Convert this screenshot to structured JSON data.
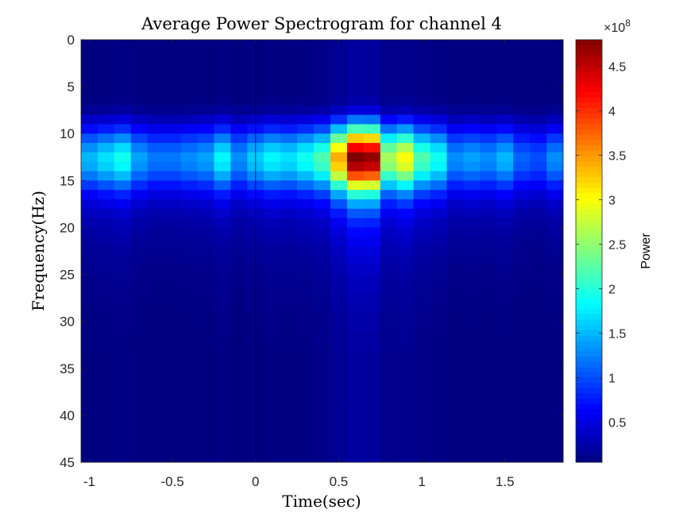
{
  "chart_data": {
    "type": "heatmap",
    "title": "Average Power Spectrogram for channel 4",
    "xlabel": "Time(sec)",
    "ylabel": "Frequency(Hz)",
    "colorbar_label": "Power",
    "colorbar_exponent": "×10",
    "colorbar_exponent_power": "8",
    "colormap": "jet",
    "grid": false,
    "xlim": [
      -1.05,
      1.85
    ],
    "ylim": [
      0,
      45
    ],
    "y_reversed": true,
    "clim": [
      0.05,
      4.8
    ],
    "x_ticks": [
      -1,
      -0.5,
      0,
      0.5,
      1,
      1.5
    ],
    "x_tick_labels": [
      "-1",
      "-0.5",
      "0",
      "0.5",
      "1",
      "1.5"
    ],
    "y_ticks": [
      0,
      5,
      10,
      15,
      20,
      25,
      30,
      35,
      40,
      45
    ],
    "y_tick_labels": [
      "0",
      "5",
      "10",
      "15",
      "20",
      "25",
      "30",
      "35",
      "40",
      "45"
    ],
    "colorbar_ticks": [
      0.5,
      1,
      1.5,
      2,
      2.5,
      3,
      3.5,
      4,
      4.5
    ],
    "colorbar_tick_labels": [
      "0.5",
      "1",
      "1.5",
      "2",
      "2.5",
      "3",
      "3.5",
      "4",
      "4.5"
    ],
    "time_bins_sec": [
      -1.0,
      -0.9,
      -0.8,
      -0.7,
      -0.6,
      -0.5,
      -0.4,
      -0.3,
      -0.2,
      -0.1,
      0.0,
      0.1,
      0.2,
      0.3,
      0.4,
      0.5,
      0.6,
      0.7,
      0.8,
      0.9,
      1.0,
      1.1,
      1.2,
      1.3,
      1.4,
      1.5,
      1.6,
      1.7,
      1.8
    ],
    "time_bin_width_sec": 0.1,
    "frequency_bins_hz": [
      1,
      2,
      3,
      4,
      5,
      6,
      7,
      8,
      9,
      10,
      11,
      12,
      13,
      14,
      15,
      16,
      17,
      18,
      19,
      20,
      21,
      22,
      23,
      24,
      25,
      26,
      27,
      28,
      29,
      30,
      31,
      32,
      33,
      34,
      35,
      36,
      37,
      38,
      39,
      40,
      41,
      42,
      43,
      44,
      45
    ],
    "frequency_bin_width_hz": 1,
    "power_units": "x10^8",
    "time_envelope_peak_power_1e8": [
      1.5,
      1.7,
      1.9,
      1.4,
      1.2,
      1.2,
      1.3,
      1.4,
      1.8,
      1.3,
      1.6,
      1.8,
      1.7,
      1.9,
      2.2,
      3.4,
      4.8,
      4.7,
      2.6,
      3.0,
      2.2,
      1.9,
      1.3,
      1.4,
      1.3,
      1.5,
      1.1,
      1.0,
      1.3
    ],
    "frequency_peak_hz": 13,
    "frequency_profile_relative": [
      0.04,
      0.04,
      0.04,
      0.04,
      0.04,
      0.04,
      0.05,
      0.1,
      0.25,
      0.45,
      0.68,
      0.88,
      1.0,
      0.95,
      0.8,
      0.6,
      0.42,
      0.3,
      0.22,
      0.17,
      0.14,
      0.12,
      0.1,
      0.09,
      0.08,
      0.07,
      0.065,
      0.06,
      0.055,
      0.05,
      0.05,
      0.045,
      0.045,
      0.04,
      0.04,
      0.04,
      0.04,
      0.04,
      0.04,
      0.04,
      0.04,
      0.04,
      0.04,
      0.04,
      0.04
    ],
    "vertical_marker_x": 0
  }
}
